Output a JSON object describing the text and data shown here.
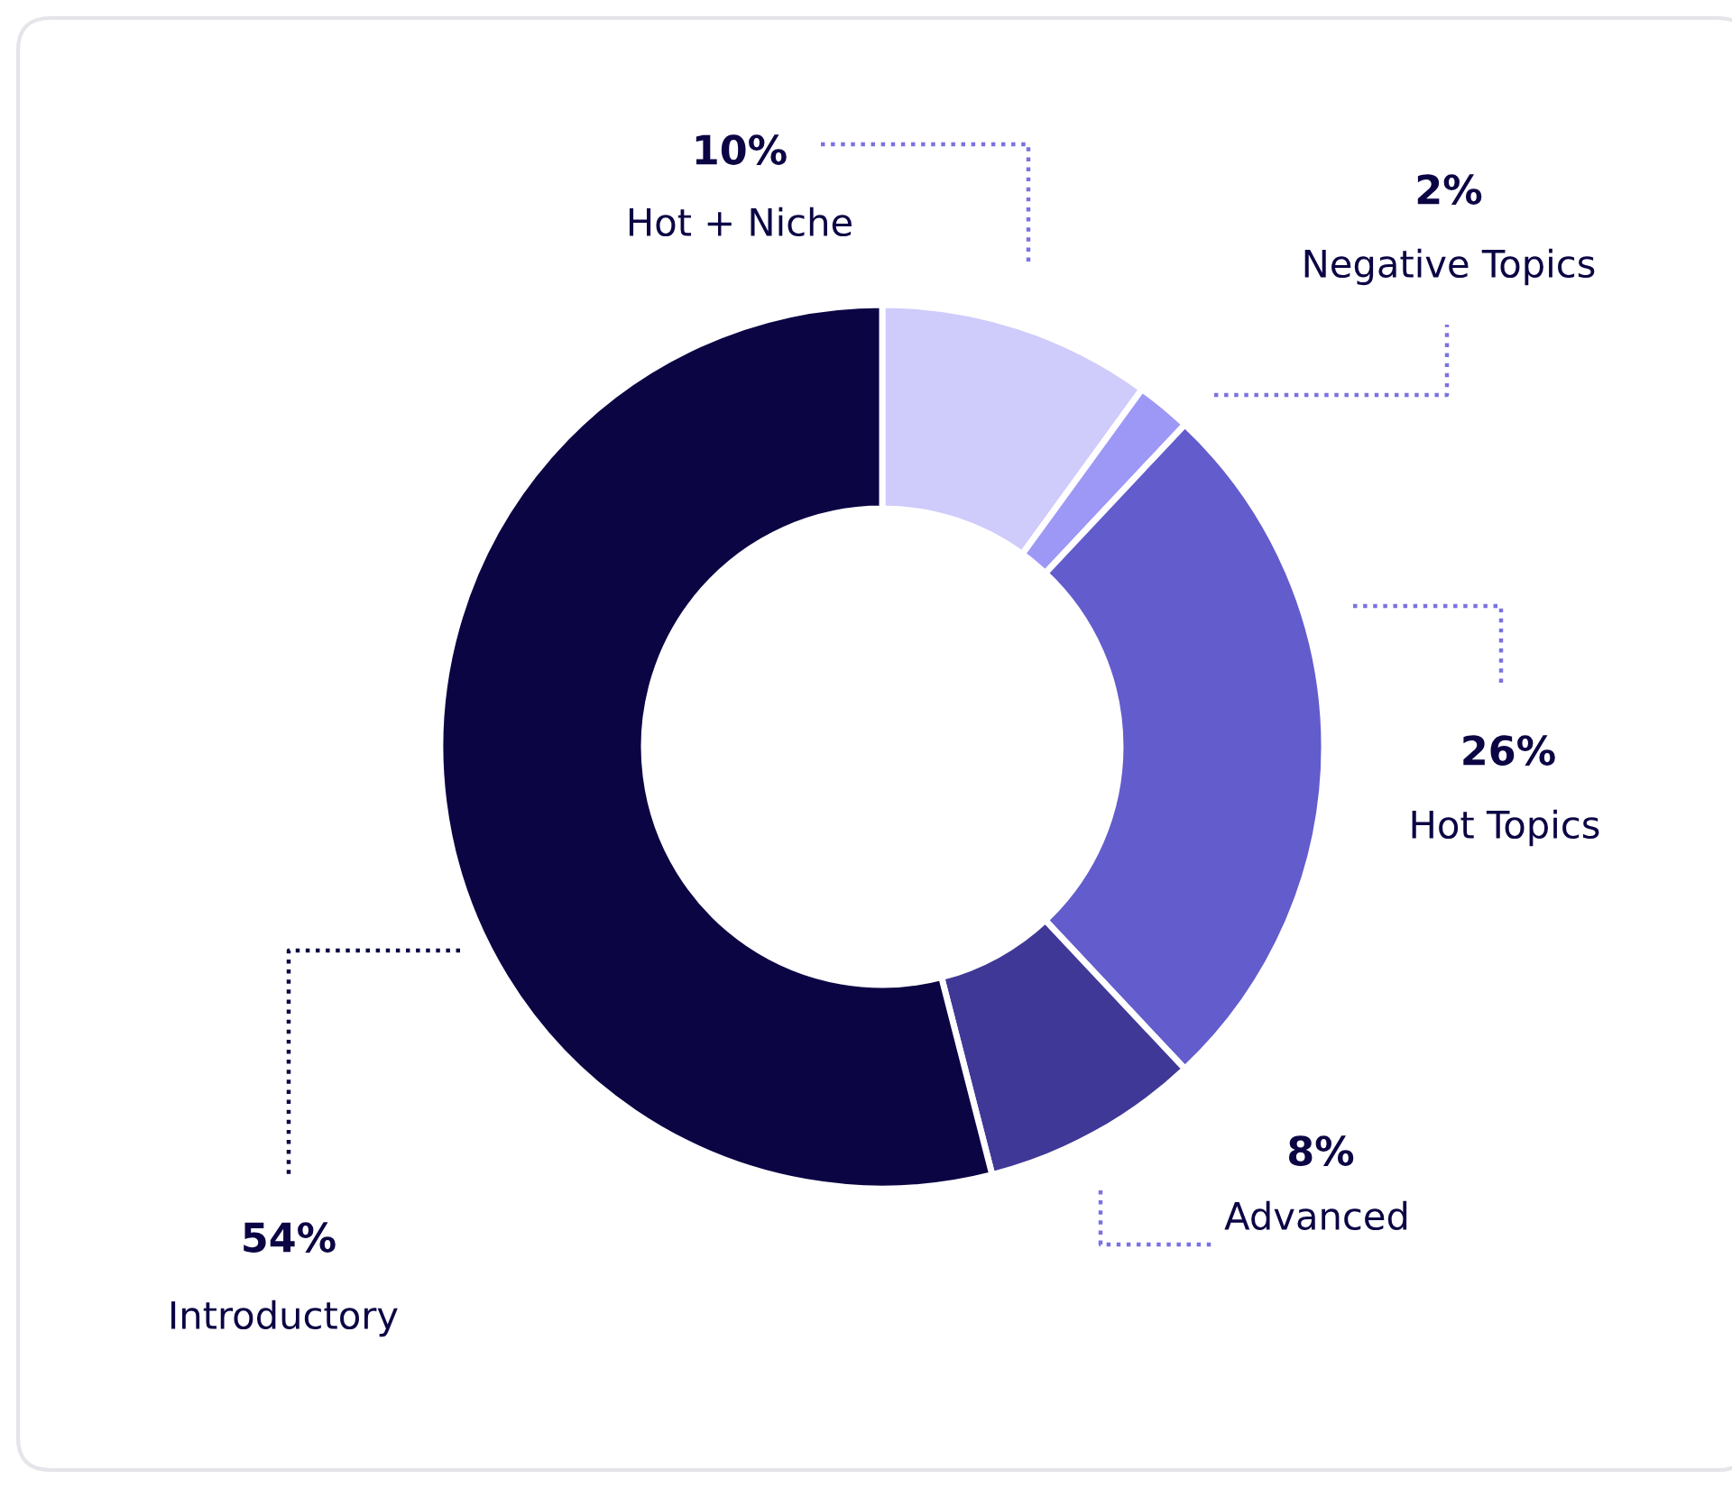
{
  "chart_data": {
    "type": "donut",
    "categories": [
      "Hot + Niche",
      "Negative Topics",
      "Hot Topics",
      "Advanced",
      "Introductory"
    ],
    "values": [
      10,
      2,
      26,
      8,
      54
    ],
    "value_labels": [
      "10%",
      "2%",
      "26%",
      "8%",
      "54%"
    ],
    "colors": [
      "#cfcbfb",
      "#9d97f5",
      "#625ccc",
      "#3f3896",
      "#0b0544"
    ],
    "legend": false
  }
}
